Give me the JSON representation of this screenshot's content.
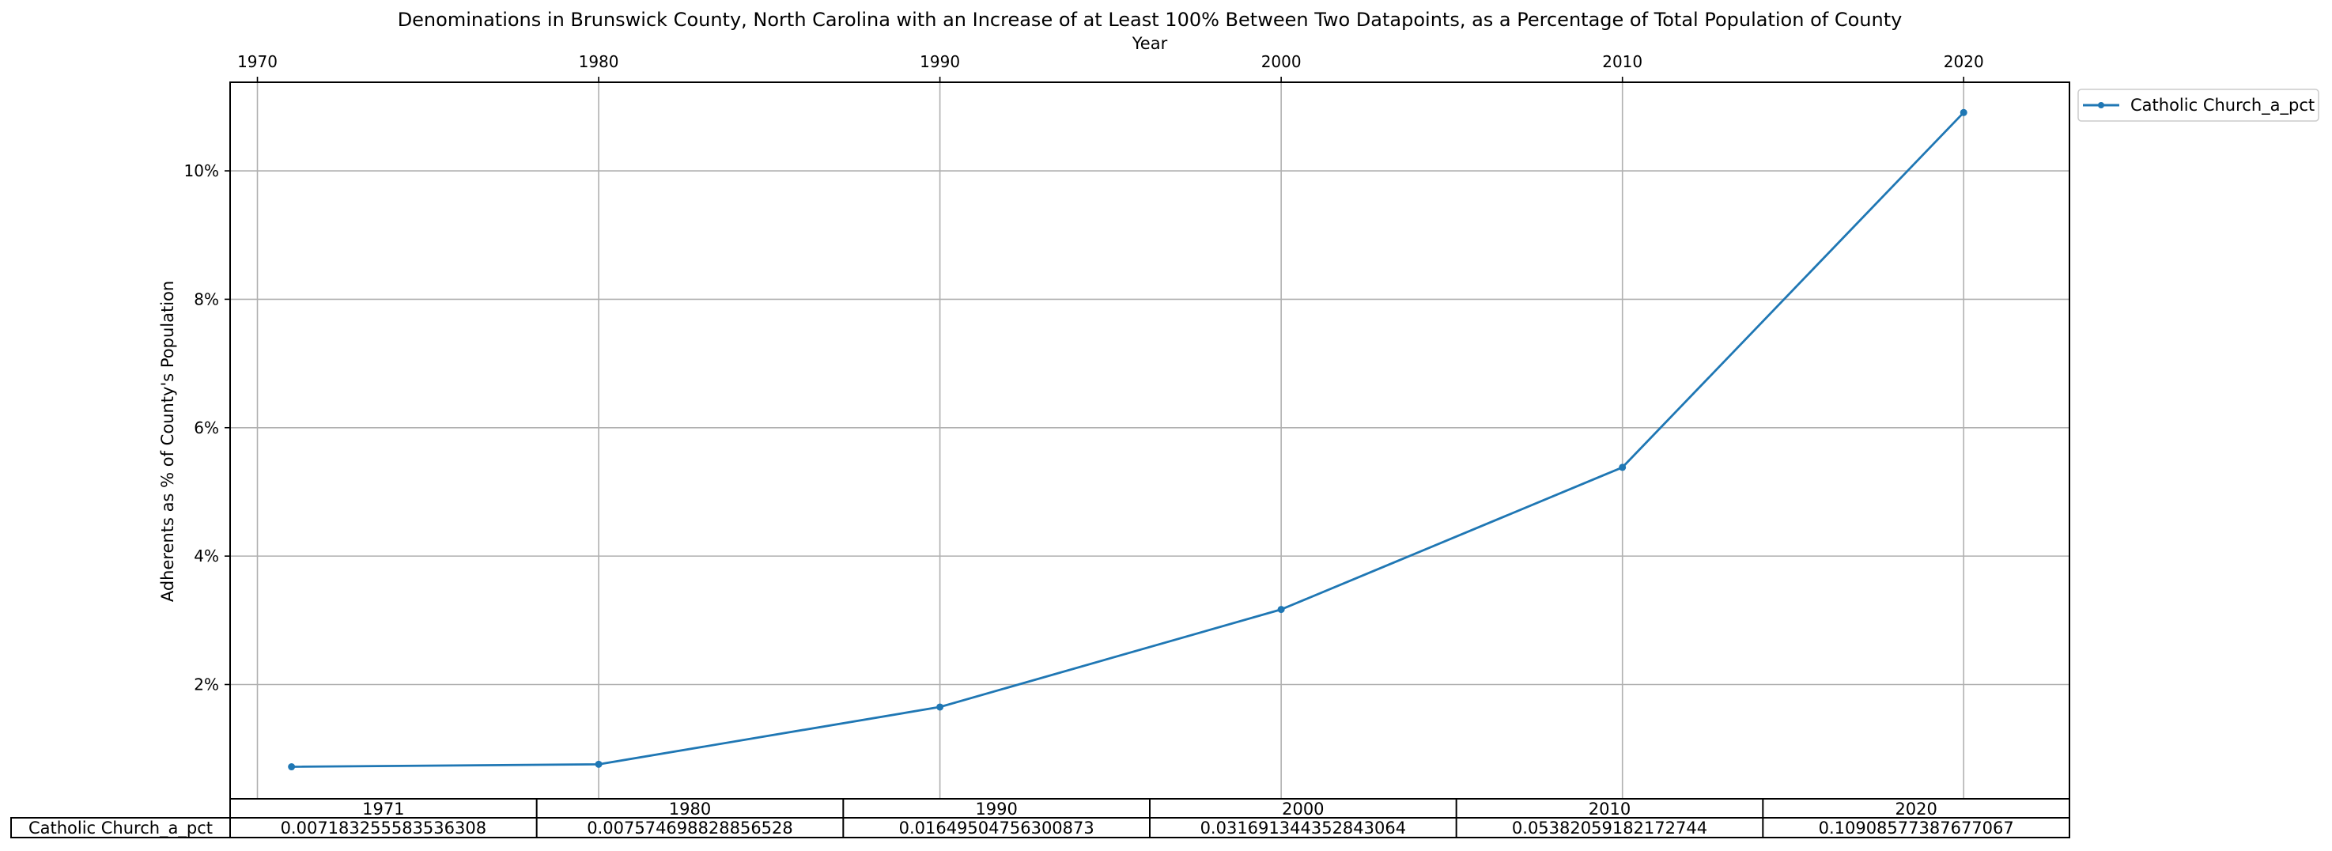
{
  "chart_data": {
    "type": "line",
    "title": "Denominations in Brunswick County, North Carolina with an Increase of at Least 100% Between Two Datapoints, as a Percentage of Total Population of County",
    "xlabel": "Year",
    "ylabel": "Adherents as % of County's Population",
    "x_axis_position": "top",
    "xlim": [
      1969.2,
      2023.1
    ],
    "ylim": [
      0.0022,
      0.1138
    ],
    "x_ticks": [
      1970,
      1980,
      1990,
      2000,
      2010,
      2020
    ],
    "x_tick_labels": [
      "1970",
      "1980",
      "1990",
      "2000",
      "2010",
      "2020"
    ],
    "y_ticks": [
      0.02,
      0.04,
      0.06,
      0.08,
      0.1
    ],
    "y_tick_labels": [
      "2%",
      "4%",
      "6%",
      "8%",
      "10%"
    ],
    "grid": true,
    "legend_position": "outside-top-right",
    "line_color": "#1f77b4",
    "series": [
      {
        "name": "Catholic Church_a_pct",
        "x": [
          1971,
          1980,
          1990,
          2000,
          2010,
          2020
        ],
        "values": [
          0.007183255583536308,
          0.007574698828856528,
          0.01649504756300873,
          0.031691344352843064,
          0.05382059182172744,
          0.10908577387677067
        ]
      }
    ],
    "table": {
      "columns": [
        "1971",
        "1980",
        "1990",
        "2000",
        "2010",
        "2020"
      ],
      "rows": [
        {
          "label": "Catholic Church_a_pct",
          "cells": [
            "0.007183255583536308",
            "0.007574698828856528",
            "0.01649504756300873",
            "0.031691344352843064",
            "0.05382059182172744",
            "0.10908577387677067"
          ]
        }
      ]
    }
  }
}
